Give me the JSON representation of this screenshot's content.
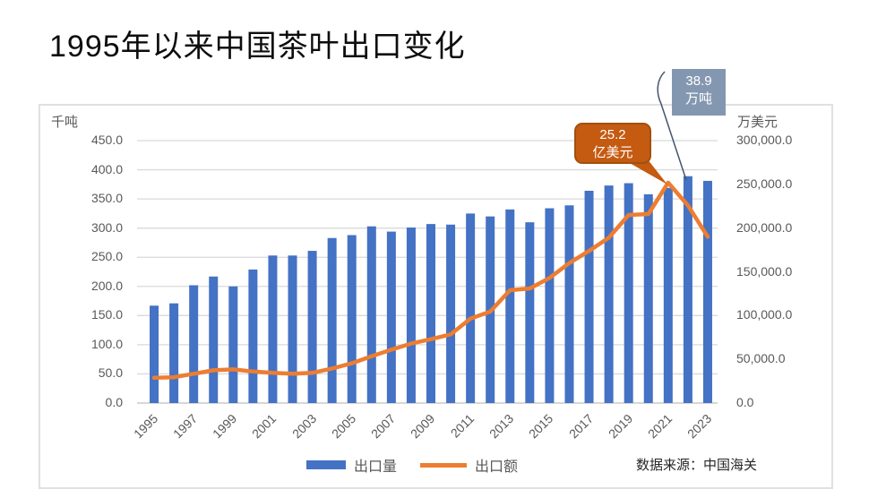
{
  "page": {
    "title": "1995年以来中国茶叶出口变化"
  },
  "chart": {
    "source_note": "数据来源：中国海关",
    "legend": {
      "bar_label": "出口量",
      "line_label": "出口额"
    },
    "callouts": [
      {
        "id": "volume-callout",
        "line1": "38.9",
        "line2": "万吨",
        "bg": "#8497B0",
        "text_color": "#ffffff",
        "pointer_color": "#44546A",
        "points_to_year": "2022"
      },
      {
        "id": "value-callout",
        "line1": "25.2",
        "line2": "亿美元",
        "bg": "#C55A11",
        "border": "#A0500F",
        "text_color": "#ffffff",
        "points_to_year": "2021"
      }
    ],
    "colors": {
      "bar": "#4472C4",
      "line": "#ED7D31",
      "gridline": "#DADADA",
      "axis_line": "#BFBFBF",
      "axis_text": "#595959"
    }
  },
  "chart_data": {
    "type": "bar+line",
    "title": "1995年以来中国茶叶出口变化",
    "gridlines": true,
    "legend_position": "bottom",
    "categories": [
      "1995",
      "1996",
      "1997",
      "1998",
      "1999",
      "2000",
      "2001",
      "2002",
      "2003",
      "2004",
      "2005",
      "2006",
      "2007",
      "2008",
      "2009",
      "2010",
      "2011",
      "2012",
      "2013",
      "2014",
      "2015",
      "2016",
      "2017",
      "2018",
      "2019",
      "2020",
      "2021",
      "2022",
      "2023"
    ],
    "x_tick_labels": [
      "1995",
      "1997",
      "1999",
      "2001",
      "2003",
      "2005",
      "2007",
      "2009",
      "2011",
      "2013",
      "2015",
      "2017",
      "2019",
      "2021",
      "2023"
    ],
    "series": [
      {
        "name": "出口量",
        "type": "bar",
        "axis": "left",
        "unit": "千吨",
        "color": "#4472C4",
        "values": [
          167,
          171,
          202,
          217,
          200,
          229,
          253,
          253,
          261,
          283,
          288,
          303,
          294,
          301,
          307,
          306,
          325,
          320,
          332,
          310,
          334,
          339,
          364,
          373,
          377,
          358,
          369,
          389,
          381
        ]
      },
      {
        "name": "出口额",
        "type": "line",
        "axis": "right",
        "unit": "万美元",
        "color": "#ED7D31",
        "values": [
          29000,
          29500,
          33500,
          37500,
          38500,
          36000,
          34500,
          33500,
          34500,
          39500,
          45500,
          53500,
          61000,
          68000,
          73000,
          78500,
          96500,
          104500,
          129000,
          131000,
          143000,
          160000,
          174000,
          189000,
          215000,
          216000,
          252000,
          226000,
          190000
        ]
      }
    ],
    "left_axis": {
      "title": "千吨",
      "min": 0,
      "max": 450,
      "step": 50,
      "tick_labels": [
        "0.0",
        "50.0",
        "100.0",
        "150.0",
        "200.0",
        "250.0",
        "300.0",
        "350.0",
        "400.0",
        "450.0"
      ]
    },
    "right_axis": {
      "title": "万美元",
      "min": 0,
      "max": 300000,
      "step": 50000,
      "tick_labels": [
        "0.0",
        "50,000.0",
        "100,000.0",
        "150,000.0",
        "200,000.0",
        "250,000.0",
        "300,000.0"
      ]
    }
  }
}
